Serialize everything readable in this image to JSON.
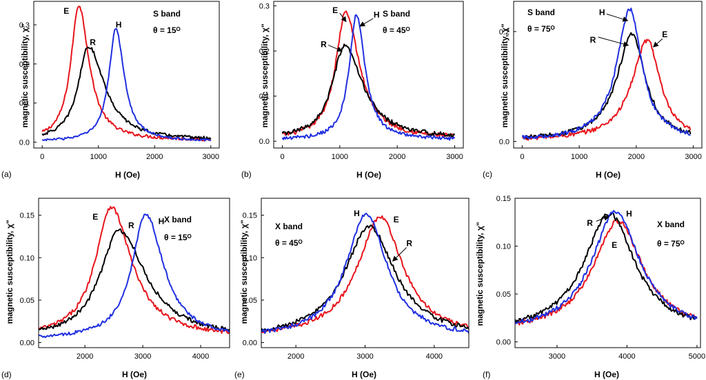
{
  "colors": {
    "E": "#e8141b",
    "R": "#000000",
    "H": "#1f2fe0"
  },
  "chart_data": [
    {
      "type": "line",
      "panel": "(a)",
      "band": "S band",
      "angle": "θ = 15ᴼ",
      "xlabel": "H  (Oe)",
      "ylabel": "magnetic susceptibility, χ\"",
      "xlim": [
        -150,
        3150
      ],
      "ylim": [
        -0.015,
        0.36
      ],
      "xticks": [
        0,
        1000,
        2000,
        3000
      ],
      "yticks": [
        0.0,
        0.1,
        0.2,
        0.3
      ],
      "ytick_labels": [
        "0.0",
        "0.1",
        "0.2",
        "0.3"
      ],
      "grid": false,
      "series": [
        {
          "name": "E",
          "peak_x": 650,
          "peak_y": 0.35,
          "width": 170,
          "base": 0.004,
          "asym": 1.3,
          "noise": 0.004,
          "from": 0,
          "to": 3000
        },
        {
          "name": "R",
          "peak_x": 820,
          "peak_y": 0.245,
          "width": 220,
          "base": 0.004,
          "asym": 1.6,
          "noise": 0.004,
          "from": 0,
          "to": 3000
        },
        {
          "name": "H",
          "peak_x": 1310,
          "peak_y": 0.29,
          "width": 150,
          "base": 0.002,
          "asym": 1.2,
          "noise": 0.003,
          "from": 0,
          "to": 3000
        }
      ],
      "annotations": [
        {
          "text": "E",
          "x": 430,
          "y": 0.335
        },
        {
          "text": "R",
          "x": 900,
          "y": 0.255
        },
        {
          "text": "H",
          "x": 1360,
          "y": 0.3
        }
      ]
    },
    {
      "type": "line",
      "panel": "(b)",
      "band": "S band",
      "angle": "θ = 45ᴼ",
      "xlabel": "H  (Oe)",
      "ylabel": "magnetic susceptibility, χ\"",
      "xlim": [
        -150,
        3150
      ],
      "ylim": [
        -0.015,
        0.31
      ],
      "xticks": [
        0,
        1000,
        2000,
        3000
      ],
      "yticks": [
        0.0,
        0.1,
        0.2,
        0.3
      ],
      "ytick_labels": [
        "0.0",
        "0.1",
        "0.2",
        "0.3"
      ],
      "grid": false,
      "series": [
        {
          "name": "E",
          "peak_x": 1100,
          "peak_y": 0.285,
          "width": 210,
          "base": 0.005,
          "asym": 1.4,
          "noise": 0.005,
          "from": 0,
          "to": 3000
        },
        {
          "name": "R",
          "peak_x": 1080,
          "peak_y": 0.21,
          "width": 260,
          "base": 0.005,
          "asym": 1.5,
          "noise": 0.005,
          "from": 0,
          "to": 3000
        },
        {
          "name": "H",
          "peak_x": 1290,
          "peak_y": 0.28,
          "width": 150,
          "base": 0.003,
          "asym": 1.2,
          "noise": 0.004,
          "from": 0,
          "to": 3000
        }
      ],
      "annotations": [
        {
          "text": "E",
          "x": 920,
          "y": 0.29
        },
        {
          "text": "H",
          "x": 1640,
          "y": 0.28
        },
        {
          "text": "R",
          "x": 720,
          "y": 0.215
        }
      ],
      "arrows": [
        {
          "from": [
            1000,
            0.284
          ],
          "to": [
            1110,
            0.265
          ]
        },
        {
          "from": [
            1580,
            0.272
          ],
          "to": [
            1350,
            0.255
          ]
        },
        {
          "from": [
            800,
            0.213
          ],
          "to": [
            1040,
            0.2
          ]
        }
      ]
    },
    {
      "type": "line",
      "panel": "(c)",
      "band": "S band",
      "angle": "θ = 75ᴼ",
      "xlabel": "H  (Oe)",
      "ylabel": "magnetic susceptibility, χ\"",
      "xlim": [
        -150,
        3150
      ],
      "ylim": [
        -0.012,
        0.255
      ],
      "xticks": [
        0,
        1000,
        2000,
        3000
      ],
      "yticks": [
        0.0,
        0.2
      ],
      "ytick_labels": [
        "0.0",
        "0.2"
      ],
      "grid": false,
      "series": [
        {
          "name": "E",
          "peak_x": 2200,
          "peak_y": 0.185,
          "width": 330,
          "base": 0.002,
          "asym": 0.8,
          "noise": 0.004,
          "from": 0,
          "to": 2950
        },
        {
          "name": "R",
          "peak_x": 1930,
          "peak_y": 0.195,
          "width": 330,
          "base": 0.002,
          "asym": 0.85,
          "noise": 0.004,
          "from": 0,
          "to": 2950
        },
        {
          "name": "H",
          "peak_x": 1890,
          "peak_y": 0.24,
          "width": 280,
          "base": 0.002,
          "asym": 0.9,
          "noise": 0.004,
          "from": 0,
          "to": 2950
        }
      ],
      "annotations": [
        {
          "text": "H",
          "x": 1400,
          "y": 0.235
        },
        {
          "text": "R",
          "x": 1240,
          "y": 0.185
        },
        {
          "text": "E",
          "x": 2500,
          "y": 0.195
        }
      ],
      "arrows": [
        {
          "from": [
            1480,
            0.232
          ],
          "to": [
            1850,
            0.22
          ]
        },
        {
          "from": [
            1330,
            0.19
          ],
          "to": [
            1860,
            0.175
          ]
        },
        {
          "from": [
            2460,
            0.187
          ],
          "to": [
            2300,
            0.172
          ]
        }
      ]
    },
    {
      "type": "line",
      "panel": "(d)",
      "band": "X band",
      "angle": "θ = 15ᴼ",
      "xlabel": "H  (Oe)",
      "ylabel": "magnetic susceptibility, χ\"",
      "xlim": [
        1200,
        4500
      ],
      "ylim": [
        -0.006,
        0.17
      ],
      "xticks": [
        2000,
        3000,
        4000
      ],
      "yticks": [
        0.0,
        0.05,
        0.1,
        0.15
      ],
      "ytick_labels": [
        "0.00",
        "0.05",
        "0.10",
        "0.15"
      ],
      "grid": false,
      "series": [
        {
          "name": "E",
          "peak_x": 2450,
          "peak_y": 0.16,
          "width": 330,
          "base": 0.006,
          "asym": 1.3,
          "noise": 0.0025,
          "from": 1200,
          "to": 4500
        },
        {
          "name": "R",
          "peak_x": 2590,
          "peak_y": 0.132,
          "width": 400,
          "base": 0.005,
          "asym": 1.4,
          "noise": 0.0025,
          "from": 1200,
          "to": 4500
        },
        {
          "name": "H",
          "peak_x": 3050,
          "peak_y": 0.151,
          "width": 290,
          "base": 0.004,
          "asym": 1.3,
          "noise": 0.002,
          "from": 1200,
          "to": 4500
        }
      ],
      "annotations": [
        {
          "text": "E",
          "x": 2180,
          "y": 0.148
        },
        {
          "text": "R",
          "x": 2800,
          "y": 0.138
        },
        {
          "text": "H",
          "x": 3320,
          "y": 0.143
        }
      ]
    },
    {
      "type": "line",
      "panel": "(e)",
      "band": "X band",
      "angle": "θ = 45ᴼ",
      "xlabel": "H  (Oe)",
      "ylabel": "magnetic susceptibility, χ\"",
      "xlim": [
        1500,
        4500
      ],
      "ylim": [
        -0.006,
        0.17
      ],
      "xticks": [
        2000,
        3000,
        4000
      ],
      "yticks": [
        0.0,
        0.05,
        0.1,
        0.15
      ],
      "ytick_labels": [
        "0.00",
        "0.05",
        "0.10",
        "0.15"
      ],
      "grid": false,
      "series": [
        {
          "name": "E",
          "peak_x": 3220,
          "peak_y": 0.148,
          "width": 400,
          "base": 0.006,
          "asym": 1.0,
          "noise": 0.0025,
          "from": 1500,
          "to": 4500
        },
        {
          "name": "R",
          "peak_x": 3060,
          "peak_y": 0.137,
          "width": 430,
          "base": 0.006,
          "asym": 1.05,
          "noise": 0.0025,
          "from": 1500,
          "to": 4500
        },
        {
          "name": "H",
          "peak_x": 3020,
          "peak_y": 0.152,
          "width": 360,
          "base": 0.005,
          "asym": 1.0,
          "noise": 0.0025,
          "from": 1500,
          "to": 4500
        }
      ],
      "annotations": [
        {
          "text": "H",
          "x": 2880,
          "y": 0.152
        },
        {
          "text": "E",
          "x": 3450,
          "y": 0.145
        },
        {
          "text": "R",
          "x": 3640,
          "y": 0.117
        }
      ],
      "arrows": [
        {
          "from": [
            3600,
            0.112
          ],
          "to": [
            3400,
            0.096
          ]
        }
      ]
    },
    {
      "type": "line",
      "panel": "(f)",
      "band": "X band",
      "angle": "θ = 75ᴼ",
      "xlabel": "H  (Oe)",
      "ylabel": "magnetic susceptibility, χ\"",
      "xlim": [
        2400,
        5050
      ],
      "ylim": [
        -0.006,
        0.15
      ],
      "xticks": [
        3000,
        4000,
        5000
      ],
      "yticks": [
        0.0,
        0.05,
        0.1,
        0.15
      ],
      "ytick_labels": [
        "0.00",
        "0.05",
        "0.10",
        "0.15"
      ],
      "grid": false,
      "series": [
        {
          "name": "E",
          "peak_x": 3870,
          "peak_y": 0.126,
          "width": 430,
          "base": 0.01,
          "asym": 1.0,
          "noise": 0.0025,
          "from": 2400,
          "to": 5000
        },
        {
          "name": "R",
          "peak_x": 3750,
          "peak_y": 0.134,
          "width": 440,
          "base": 0.01,
          "asym": 1.0,
          "noise": 0.0025,
          "from": 2400,
          "to": 5000
        },
        {
          "name": "H",
          "peak_x": 3840,
          "peak_y": 0.136,
          "width": 420,
          "base": 0.01,
          "asym": 1.0,
          "noise": 0.0025,
          "from": 2400,
          "to": 5000
        }
      ],
      "annotations": [
        {
          "text": "R",
          "x": 3470,
          "y": 0.124
        },
        {
          "text": "H",
          "x": 4030,
          "y": 0.134
        },
        {
          "text": "E",
          "x": 3820,
          "y": 0.101
        }
      ],
      "arrows": [
        {
          "from": [
            3560,
            0.126
          ],
          "to": [
            3740,
            0.131
          ]
        }
      ]
    }
  ]
}
